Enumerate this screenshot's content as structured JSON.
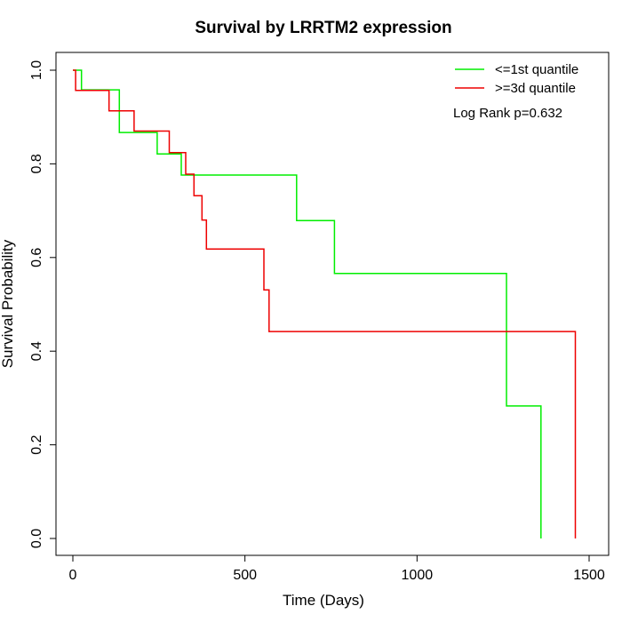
{
  "chart_data": {
    "type": "line",
    "subtype": "kaplan-meier-step",
    "title": "Survival by LRRTM2 expression",
    "xlabel": "Time (Days)",
    "ylabel": "Survival Probability",
    "xlim": [
      0,
      1500
    ],
    "ylim": [
      0,
      1.0
    ],
    "x_ticks": [
      0,
      500,
      1000,
      1500
    ],
    "y_ticks": [
      0.0,
      0.2,
      0.4,
      0.6,
      0.8,
      1.0
    ],
    "x_tick_labels": [
      "0",
      "500",
      "1000",
      "1500"
    ],
    "y_tick_labels": [
      "0.0",
      "0.2",
      "0.4",
      "0.6",
      "0.8",
      "1.0"
    ],
    "grid": false,
    "legend_position": "top-right",
    "annotation": "Log Rank p=0.632",
    "series": [
      {
        "name": "<=1st quantile",
        "color": "#00ee00",
        "points": [
          [
            0,
            1.0
          ],
          [
            25,
            1.0
          ],
          [
            25,
            0.958
          ],
          [
            135,
            0.958
          ],
          [
            135,
            0.867
          ],
          [
            245,
            0.867
          ],
          [
            245,
            0.821
          ],
          [
            315,
            0.821
          ],
          [
            315,
            0.776
          ],
          [
            650,
            0.776
          ],
          [
            650,
            0.679
          ],
          [
            760,
            0.679
          ],
          [
            760,
            0.566
          ],
          [
            1260,
            0.566
          ],
          [
            1260,
            0.283
          ],
          [
            1360,
            0.283
          ],
          [
            1360,
            0.0
          ]
        ]
      },
      {
        "name": ">=3d quantile",
        "color": "#ee0000",
        "points": [
          [
            0,
            1.0
          ],
          [
            8,
            1.0
          ],
          [
            8,
            0.957
          ],
          [
            105,
            0.957
          ],
          [
            105,
            0.913
          ],
          [
            178,
            0.913
          ],
          [
            178,
            0.87
          ],
          [
            280,
            0.87
          ],
          [
            280,
            0.824
          ],
          [
            328,
            0.824
          ],
          [
            328,
            0.778
          ],
          [
            352,
            0.778
          ],
          [
            352,
            0.732
          ],
          [
            375,
            0.732
          ],
          [
            375,
            0.68
          ],
          [
            388,
            0.68
          ],
          [
            388,
            0.618
          ],
          [
            555,
            0.618
          ],
          [
            555,
            0.531
          ],
          [
            570,
            0.531
          ],
          [
            570,
            0.442
          ],
          [
            1460,
            0.442
          ],
          [
            1460,
            0.0
          ]
        ]
      }
    ]
  }
}
